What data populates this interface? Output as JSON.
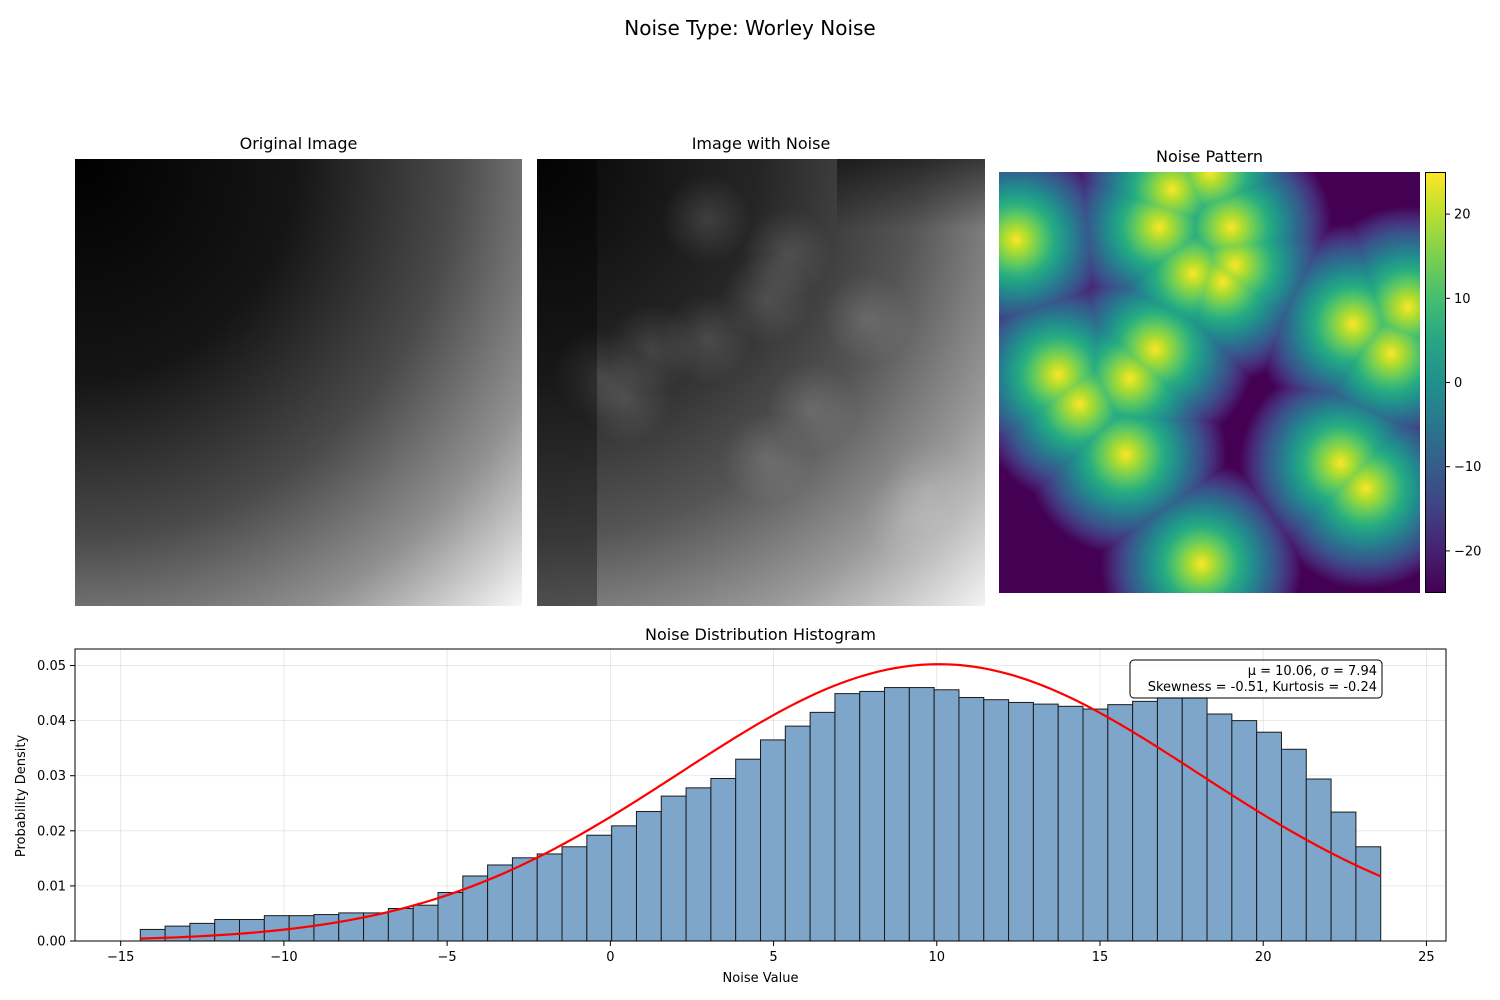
{
  "figure": {
    "suptitle": "Noise Type: Worley Noise"
  },
  "panels": {
    "original_title": "Original Image",
    "noisy_title": "Image with Noise",
    "noise_title": "Noise Pattern"
  },
  "colorbar": {
    "ticks": [
      "20",
      "10",
      "0",
      "−10",
      "−20"
    ],
    "range": [
      -25,
      25
    ],
    "colormap": "viridis"
  },
  "colors": {
    "bar_fill": "#7ea6cb",
    "bar_edge": "#1a1a1a",
    "fit_line": "#ff0000"
  },
  "chart_data": {
    "type": "bar",
    "title": "Noise Distribution Histogram",
    "xlabel": "Noise Value",
    "ylabel": "Probability Density",
    "xlim": [
      -16.4,
      25.6
    ],
    "ylim": [
      0,
      0.053
    ],
    "xticks": [
      -15,
      -10,
      -5,
      0,
      5,
      10,
      15,
      20,
      25
    ],
    "xtick_labels": [
      "−15",
      "−10",
      "−5",
      "0",
      "5",
      "10",
      "15",
      "20",
      "25"
    ],
    "yticks": [
      0.0,
      0.01,
      0.02,
      0.03,
      0.04,
      0.05
    ],
    "ytick_labels": [
      "0.00",
      "0.01",
      "0.02",
      "0.03",
      "0.04",
      "0.05"
    ],
    "grid": true,
    "bin_start": -14.4,
    "bin_width": 0.76,
    "values": [
      0.0021,
      0.0027,
      0.0032,
      0.0039,
      0.0039,
      0.0046,
      0.0046,
      0.0048,
      0.0051,
      0.0051,
      0.0059,
      0.0065,
      0.0088,
      0.0118,
      0.0138,
      0.0151,
      0.0158,
      0.0171,
      0.0192,
      0.0209,
      0.0235,
      0.0263,
      0.0278,
      0.0295,
      0.033,
      0.0365,
      0.039,
      0.0415,
      0.0449,
      0.0453,
      0.046,
      0.046,
      0.0456,
      0.0442,
      0.0438,
      0.0433,
      0.043,
      0.0426,
      0.0421,
      0.0429,
      0.0435,
      0.0442,
      0.0442,
      0.0412,
      0.04,
      0.0379,
      0.0348,
      0.0294,
      0.0234,
      0.0171
    ],
    "normal_fit": {
      "mu": 10.06,
      "sigma": 7.94,
      "x_range": [
        -14.4,
        23.6
      ]
    },
    "annotation": [
      "μ = 10.06, σ = 7.94",
      "Skewness = -0.51, Kurtosis = -0.24"
    ]
  }
}
